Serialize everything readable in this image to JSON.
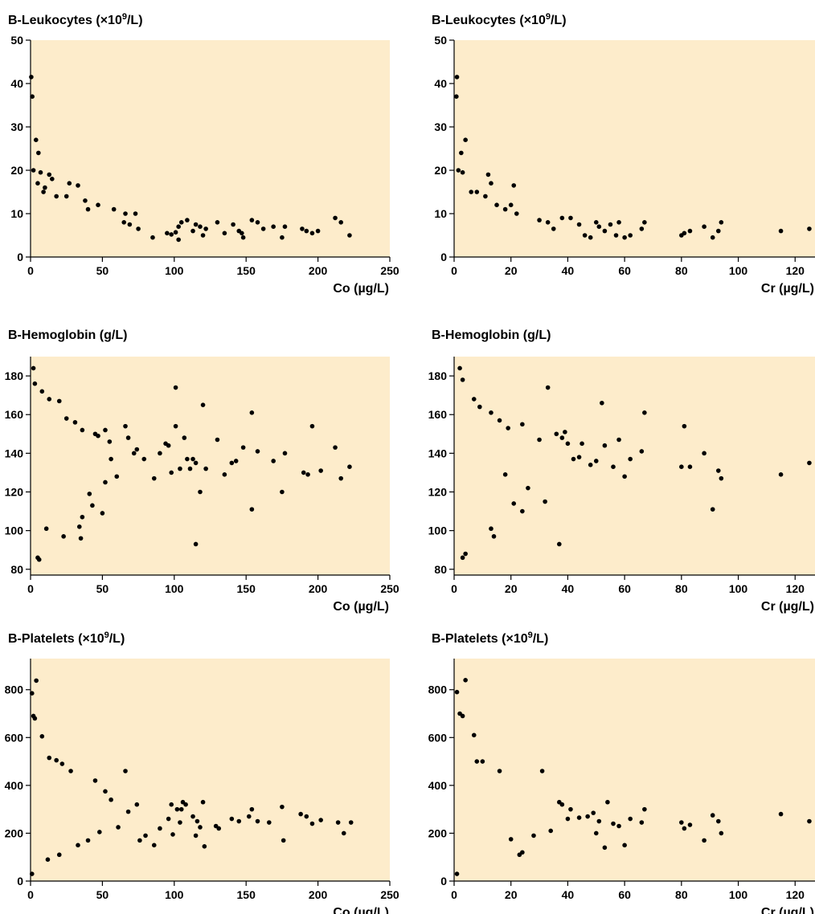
{
  "colors": {
    "plot_background": "#fdeccb",
    "point": "#000000",
    "axis": "#000000"
  },
  "chart_data": [
    {
      "type": "scatter",
      "ylabel": {
        "main": "B-Leukocytes (×10",
        "sup": "9",
        "tail": "/L)"
      },
      "xlabel": "Co (µg/L)",
      "xlim": [
        0,
        250
      ],
      "ylim": [
        0,
        50
      ],
      "xticks": [
        0,
        50,
        100,
        150,
        200,
        250
      ],
      "yticks": [
        0,
        10,
        20,
        30,
        40,
        50
      ],
      "grid": false,
      "points": [
        [
          0.5,
          41.5
        ],
        [
          1.2,
          37
        ],
        [
          3.8,
          27
        ],
        [
          5.5,
          24
        ],
        [
          2,
          20
        ],
        [
          7,
          19.5
        ],
        [
          13,
          19
        ],
        [
          27,
          17
        ],
        [
          15,
          18
        ],
        [
          5,
          17
        ],
        [
          10,
          16
        ],
        [
          38,
          13
        ],
        [
          33,
          16.5
        ],
        [
          9,
          15
        ],
        [
          18,
          14
        ],
        [
          25,
          14
        ],
        [
          47,
          12
        ],
        [
          58,
          11
        ],
        [
          66,
          10
        ],
        [
          73,
          10
        ],
        [
          40,
          11
        ],
        [
          65,
          8
        ],
        [
          69,
          7.5
        ],
        [
          75,
          6.5
        ],
        [
          85,
          4.5
        ],
        [
          95,
          5.5
        ],
        [
          98,
          5.2
        ],
        [
          101,
          5.7
        ],
        [
          103,
          7
        ],
        [
          103,
          4
        ],
        [
          105,
          8
        ],
        [
          109,
          8.5
        ],
        [
          113,
          6
        ],
        [
          115,
          7.5
        ],
        [
          118,
          7
        ],
        [
          120,
          5
        ],
        [
          122,
          6.5
        ],
        [
          130,
          8
        ],
        [
          135,
          5.5
        ],
        [
          141,
          7.5
        ],
        [
          145,
          6
        ],
        [
          148,
          4.5
        ],
        [
          147,
          5.5
        ],
        [
          154,
          8.5
        ],
        [
          158,
          8
        ],
        [
          162,
          6.5
        ],
        [
          169,
          7
        ],
        [
          175,
          4.5
        ],
        [
          177,
          7
        ],
        [
          189,
          6.5
        ],
        [
          192,
          6
        ],
        [
          196,
          5.5
        ],
        [
          200,
          6
        ],
        [
          212,
          9
        ],
        [
          216,
          8
        ],
        [
          222,
          5
        ]
      ]
    },
    {
      "type": "scatter",
      "ylabel": {
        "main": "B-Leukocytes (×10",
        "sup": "9",
        "tail": "/L)"
      },
      "xlabel": "Cr (µg/L)",
      "xlim": [
        0,
        127
      ],
      "ylim": [
        0,
        50
      ],
      "xticks": [
        0,
        20,
        40,
        60,
        80,
        100,
        120
      ],
      "yticks": [
        0,
        10,
        20,
        30,
        40,
        50
      ],
      "grid": false,
      "points": [
        [
          1,
          41.5
        ],
        [
          0.8,
          37
        ],
        [
          4,
          27
        ],
        [
          2.5,
          24
        ],
        [
          1.5,
          20
        ],
        [
          3,
          19.5
        ],
        [
          12,
          19
        ],
        [
          13,
          17
        ],
        [
          21,
          16.5
        ],
        [
          6,
          15
        ],
        [
          8,
          15
        ],
        [
          11,
          14
        ],
        [
          15,
          12
        ],
        [
          18,
          11
        ],
        [
          20,
          12
        ],
        [
          22,
          10
        ],
        [
          30,
          8.5
        ],
        [
          33,
          8
        ],
        [
          38,
          9
        ],
        [
          35,
          6.5
        ],
        [
          41,
          9
        ],
        [
          44,
          7.5
        ],
        [
          46,
          5
        ],
        [
          48,
          4.5
        ],
        [
          50,
          8
        ],
        [
          51,
          7
        ],
        [
          53,
          6
        ],
        [
          55,
          7.5
        ],
        [
          57,
          5
        ],
        [
          58,
          8
        ],
        [
          60,
          4.5
        ],
        [
          62,
          5
        ],
        [
          66,
          6.5
        ],
        [
          67,
          8
        ],
        [
          80,
          5
        ],
        [
          81,
          5.5
        ],
        [
          83,
          6
        ],
        [
          88,
          7
        ],
        [
          91,
          4.5
        ],
        [
          93,
          6
        ],
        [
          94,
          8
        ],
        [
          115,
          6
        ],
        [
          125,
          6.5
        ]
      ]
    },
    {
      "type": "scatter",
      "ylabel": {
        "main": "B-Hemoglobin (g/L)",
        "sup": "",
        "tail": ""
      },
      "xlabel": "Co (µg/L)",
      "xlim": [
        0,
        250
      ],
      "ylim": [
        77,
        190
      ],
      "xticks": [
        0,
        50,
        100,
        150,
        200,
        250
      ],
      "yticks": [
        80,
        100,
        120,
        140,
        160,
        180
      ],
      "grid": false,
      "points": [
        [
          2,
          184
        ],
        [
          3,
          176
        ],
        [
          8,
          172
        ],
        [
          13,
          168
        ],
        [
          20,
          167
        ],
        [
          25,
          158
        ],
        [
          31,
          156
        ],
        [
          36,
          152
        ],
        [
          45,
          150
        ],
        [
          47,
          149
        ],
        [
          52,
          152
        ],
        [
          55,
          146
        ],
        [
          56,
          137
        ],
        [
          60,
          128
        ],
        [
          66,
          154
        ],
        [
          68,
          148
        ],
        [
          72,
          140
        ],
        [
          74,
          142
        ],
        [
          79,
          137
        ],
        [
          86,
          127
        ],
        [
          90,
          140
        ],
        [
          94,
          145
        ],
        [
          96,
          144
        ],
        [
          98,
          130
        ],
        [
          101,
          174
        ],
        [
          101,
          154
        ],
        [
          104,
          132
        ],
        [
          107,
          148
        ],
        [
          109,
          137
        ],
        [
          111,
          132
        ],
        [
          113,
          137
        ],
        [
          115,
          93
        ],
        [
          115,
          135
        ],
        [
          118,
          120
        ],
        [
          120,
          165
        ],
        [
          122,
          132
        ],
        [
          130,
          147
        ],
        [
          135,
          129
        ],
        [
          140,
          135
        ],
        [
          143,
          136
        ],
        [
          148,
          143
        ],
        [
          154,
          161
        ],
        [
          154,
          111
        ],
        [
          158,
          141
        ],
        [
          169,
          136
        ],
        [
          175,
          120
        ],
        [
          177,
          140
        ],
        [
          190,
          130
        ],
        [
          193,
          129
        ],
        [
          196,
          154
        ],
        [
          202,
          131
        ],
        [
          212,
          143
        ],
        [
          216,
          127
        ],
        [
          222,
          133
        ],
        [
          35,
          96
        ],
        [
          23,
          97
        ],
        [
          43,
          113
        ],
        [
          50,
          109
        ],
        [
          36,
          107
        ],
        [
          34,
          102
        ],
        [
          11,
          101
        ],
        [
          5,
          86
        ],
        [
          6,
          85
        ],
        [
          41,
          119
        ],
        [
          52,
          125
        ]
      ]
    },
    {
      "type": "scatter",
      "ylabel": {
        "main": "B-Hemoglobin (g/L)",
        "sup": "",
        "tail": ""
      },
      "xlabel": "Cr (µg/L)",
      "xlim": [
        0,
        127
      ],
      "ylim": [
        77,
        190
      ],
      "xticks": [
        0,
        20,
        40,
        60,
        80,
        100,
        120
      ],
      "yticks": [
        80,
        100,
        120,
        140,
        160,
        180
      ],
      "grid": false,
      "points": [
        [
          2,
          184
        ],
        [
          3,
          178
        ],
        [
          7,
          168
        ],
        [
          9,
          164
        ],
        [
          13,
          161
        ],
        [
          16,
          157
        ],
        [
          19,
          153
        ],
        [
          24,
          155
        ],
        [
          30,
          147
        ],
        [
          33,
          174
        ],
        [
          36,
          150
        ],
        [
          38,
          148
        ],
        [
          39,
          151
        ],
        [
          40,
          145
        ],
        [
          44,
          138
        ],
        [
          45,
          145
        ],
        [
          48,
          134
        ],
        [
          50,
          136
        ],
        [
          52,
          166
        ],
        [
          53,
          144
        ],
        [
          56,
          133
        ],
        [
          58,
          147
        ],
        [
          60,
          128
        ],
        [
          62,
          137
        ],
        [
          66,
          141
        ],
        [
          67,
          161
        ],
        [
          80,
          133
        ],
        [
          81,
          154
        ],
        [
          83,
          133
        ],
        [
          88,
          140
        ],
        [
          91,
          111
        ],
        [
          93,
          131
        ],
        [
          94,
          127
        ],
        [
          115,
          129
        ],
        [
          125,
          135
        ],
        [
          37,
          93
        ],
        [
          14,
          97
        ],
        [
          13,
          101
        ],
        [
          24,
          110
        ],
        [
          32,
          115
        ],
        [
          26,
          122
        ],
        [
          21,
          114
        ],
        [
          18,
          129
        ],
        [
          42,
          137
        ],
        [
          3,
          86
        ],
        [
          4,
          88
        ]
      ]
    },
    {
      "type": "scatter",
      "ylabel": {
        "main": "B-Platelets (×10",
        "sup": "9",
        "tail": "/L)"
      },
      "xlabel": "Co (µg/L)",
      "xlim": [
        0,
        250
      ],
      "ylim": [
        0,
        930
      ],
      "xticks": [
        0,
        50,
        100,
        150,
        200,
        250
      ],
      "yticks": [
        0,
        200,
        400,
        600,
        800
      ],
      "grid": false,
      "points": [
        [
          1,
          785
        ],
        [
          4,
          838
        ],
        [
          2,
          690
        ],
        [
          3,
          680
        ],
        [
          8,
          605
        ],
        [
          1,
          30
        ],
        [
          13,
          515
        ],
        [
          18,
          505
        ],
        [
          22,
          490
        ],
        [
          28,
          460
        ],
        [
          45,
          420
        ],
        [
          52,
          375
        ],
        [
          66,
          460
        ],
        [
          56,
          340
        ],
        [
          68,
          290
        ],
        [
          74,
          320
        ],
        [
          76,
          170
        ],
        [
          80,
          190
        ],
        [
          86,
          150
        ],
        [
          90,
          220
        ],
        [
          96,
          260
        ],
        [
          98,
          320
        ],
        [
          99,
          195
        ],
        [
          102,
          300
        ],
        [
          104,
          245
        ],
        [
          105,
          300
        ],
        [
          106,
          330
        ],
        [
          108,
          320
        ],
        [
          113,
          270
        ],
        [
          115,
          190
        ],
        [
          116,
          250
        ],
        [
          118,
          225
        ],
        [
          120,
          330
        ],
        [
          121,
          145
        ],
        [
          129,
          230
        ],
        [
          131,
          220
        ],
        [
          140,
          260
        ],
        [
          145,
          250
        ],
        [
          152,
          270
        ],
        [
          154,
          300
        ],
        [
          158,
          250
        ],
        [
          166,
          245
        ],
        [
          175,
          310
        ],
        [
          176,
          170
        ],
        [
          188,
          280
        ],
        [
          192,
          270
        ],
        [
          196,
          240
        ],
        [
          202,
          255
        ],
        [
          214,
          245
        ],
        [
          218,
          200
        ],
        [
          223,
          245
        ],
        [
          33,
          150
        ],
        [
          40,
          170
        ],
        [
          48,
          205
        ],
        [
          61,
          225
        ],
        [
          12,
          90
        ],
        [
          20,
          110
        ]
      ]
    },
    {
      "type": "scatter",
      "ylabel": {
        "main": "B-Platelets (×10",
        "sup": "9",
        "tail": "/L)"
      },
      "xlabel": "Cr (µg/L)",
      "xlim": [
        0,
        127
      ],
      "ylim": [
        0,
        930
      ],
      "xticks": [
        0,
        20,
        40,
        60,
        80,
        100,
        120
      ],
      "yticks": [
        0,
        200,
        400,
        600,
        800
      ],
      "grid": false,
      "points": [
        [
          1,
          790
        ],
        [
          4,
          840
        ],
        [
          2,
          700
        ],
        [
          3,
          690
        ],
        [
          7,
          610
        ],
        [
          1,
          30
        ],
        [
          8,
          500
        ],
        [
          10,
          500
        ],
        [
          16,
          460
        ],
        [
          31,
          460
        ],
        [
          37,
          330
        ],
        [
          38,
          320
        ],
        [
          40,
          260
        ],
        [
          41,
          300
        ],
        [
          44,
          265
        ],
        [
          47,
          270
        ],
        [
          49,
          285
        ],
        [
          50,
          200
        ],
        [
          51,
          250
        ],
        [
          53,
          140
        ],
        [
          54,
          330
        ],
        [
          56,
          240
        ],
        [
          58,
          230
        ],
        [
          60,
          150
        ],
        [
          62,
          260
        ],
        [
          66,
          245
        ],
        [
          67,
          300
        ],
        [
          80,
          245
        ],
        [
          81,
          220
        ],
        [
          83,
          235
        ],
        [
          88,
          170
        ],
        [
          91,
          275
        ],
        [
          93,
          250
        ],
        [
          94,
          200
        ],
        [
          115,
          280
        ],
        [
          125,
          250
        ],
        [
          23,
          110
        ],
        [
          24,
          120
        ],
        [
          28,
          190
        ],
        [
          34,
          210
        ],
        [
          20,
          175
        ]
      ]
    }
  ]
}
